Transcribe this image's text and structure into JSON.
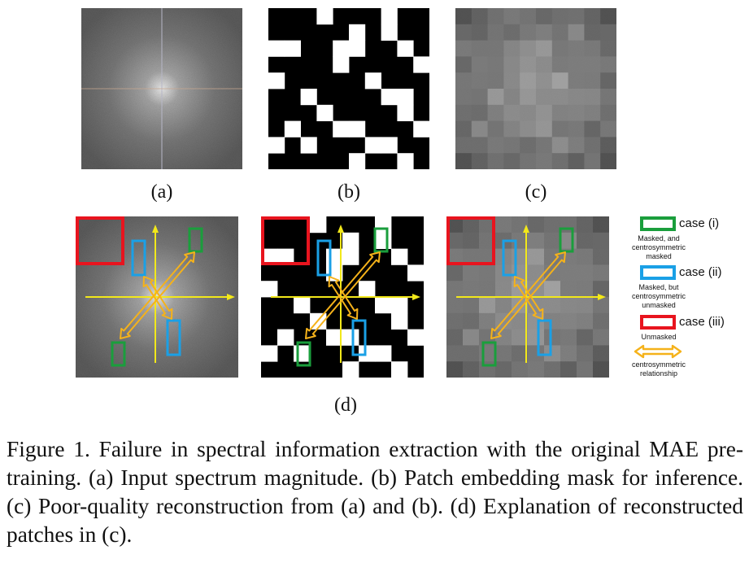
{
  "panels": {
    "a": {
      "label": "(a)"
    },
    "b": {
      "label": "(b)"
    },
    "c": {
      "label": "(c)"
    },
    "d": {
      "label": "(d)"
    }
  },
  "legend": [
    {
      "case": "case (i)",
      "desc": [
        "Masked, and",
        "centrosymmetric",
        "masked"
      ],
      "color": "#1a9e3c"
    },
    {
      "case": "case (ii)",
      "desc": [
        "Masked, but",
        "centrosymmetric",
        "unmasked"
      ],
      "color": "#1aa0e6"
    },
    {
      "case": "case (iii)",
      "desc": [
        "Unmasked"
      ],
      "color": "#e8141e"
    },
    {
      "case": "",
      "desc": [
        "centrosymmetric",
        "relationship"
      ],
      "color": "#f5b21a"
    }
  ],
  "colors": {
    "arrow": "#f5b21a",
    "axis": "#f2e81a",
    "red": "#e8141e",
    "green": "#1a9e3c",
    "blue": "#1aa0e6"
  },
  "mask_grid": {
    "size": 10,
    "white_cells": [
      [
        0,
        3
      ],
      [
        0,
        7
      ],
      [
        1,
        5
      ],
      [
        1,
        7
      ],
      [
        2,
        0
      ],
      [
        2,
        1
      ],
      [
        2,
        4
      ],
      [
        2,
        5
      ],
      [
        2,
        8
      ],
      [
        3,
        4
      ],
      [
        3,
        9
      ],
      [
        4,
        0
      ],
      [
        4,
        6
      ],
      [
        5,
        2
      ],
      [
        5,
        7
      ],
      [
        5,
        8
      ],
      [
        6,
        3
      ],
      [
        6,
        8
      ],
      [
        7,
        1
      ],
      [
        7,
        4
      ],
      [
        7,
        5
      ],
      [
        7,
        9
      ],
      [
        8,
        0
      ],
      [
        8,
        2
      ],
      [
        8,
        6
      ],
      [
        8,
        7
      ],
      [
        9,
        5
      ],
      [
        9,
        8
      ]
    ]
  },
  "caption": "Figure 1. Failure in spectral information extraction with the original MAE pre-training. (a) Input spectrum magnitude. (b) Patch embedding mask for inference. (c) Poor-quality reconstruction from (a) and (b). (d) Explanation of reconstructed patches in (c)."
}
